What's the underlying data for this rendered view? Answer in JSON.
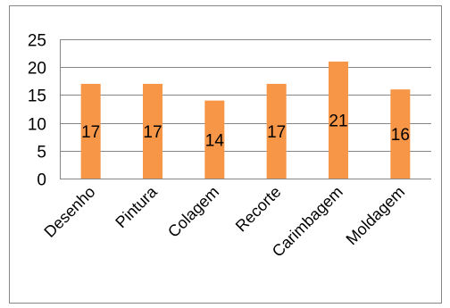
{
  "chart_data": {
    "type": "bar",
    "categories": [
      "Desenho",
      "Pintura",
      "Colagem",
      "Recorte",
      "Carimbagem",
      "Moldagem"
    ],
    "values": [
      17,
      17,
      14,
      17,
      21,
      16
    ],
    "data_labels": [
      "17",
      "17",
      "14",
      "17",
      "21",
      "16"
    ],
    "yticks": [
      "0",
      "5",
      "10",
      "15",
      "20",
      "25"
    ],
    "ylim": [
      0,
      25
    ],
    "grid": true,
    "legend": "none",
    "colors": {
      "bar": "#F79646",
      "grid": "#868686",
      "border": "#868686"
    }
  }
}
